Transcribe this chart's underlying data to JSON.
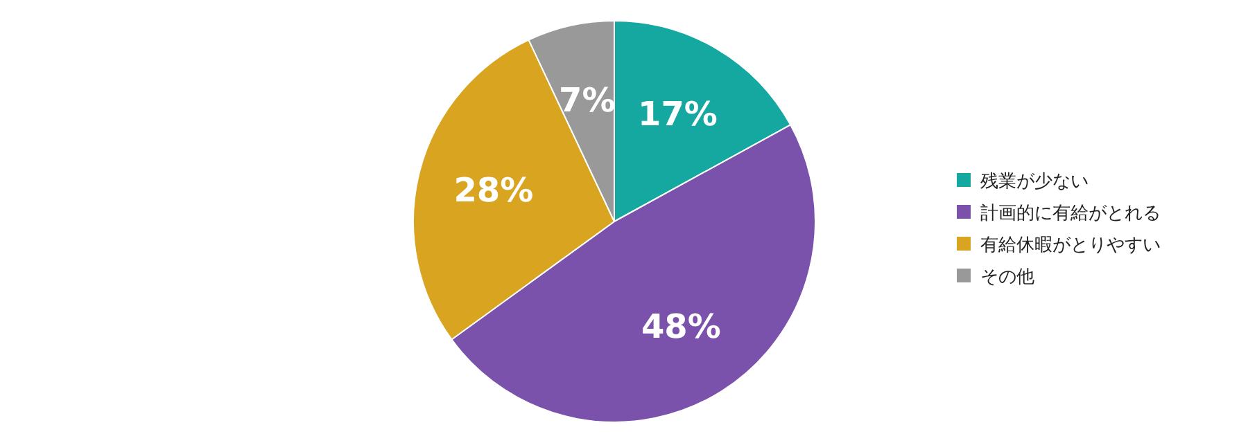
{
  "chart_data": {
    "type": "pie",
    "categories": [
      "残業が少ない",
      "計画的に有給がとれる",
      "有給休暇がとりやすい",
      "その他"
    ],
    "values": [
      17,
      48,
      28,
      7
    ],
    "colors": [
      "#14a8a0",
      "#7b52ab",
      "#d9a520",
      "#999999"
    ],
    "value_labels": [
      "17%",
      "48%",
      "28%",
      "7%"
    ],
    "legend": "right"
  }
}
